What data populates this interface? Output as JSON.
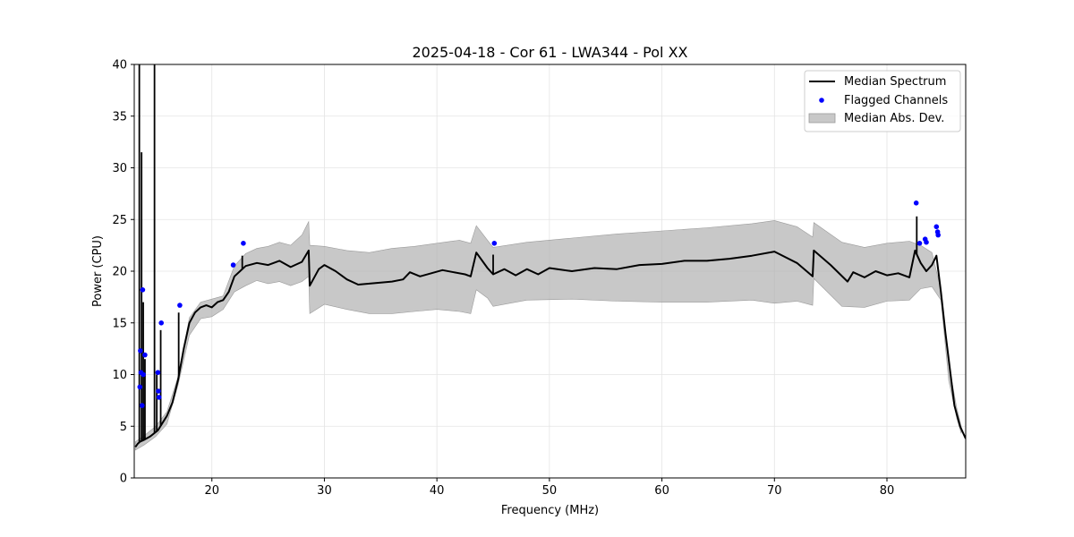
{
  "chart_data": {
    "type": "line",
    "title": "2025-04-18 - Cor 61 - LWA344 - Pol XX",
    "xlabel": "Frequency (MHz)",
    "ylabel": "Power (CPU)",
    "xlim": [
      13.1,
      87.0
    ],
    "ylim": [
      0,
      40
    ],
    "xticks": [
      20,
      30,
      40,
      50,
      60,
      70,
      80
    ],
    "yticks": [
      0,
      5,
      10,
      15,
      20,
      25,
      30,
      35,
      40
    ],
    "grid": true,
    "legend": "top-right",
    "colors": {
      "median": "#000000",
      "flagged": "#0000ff",
      "mad": "#b0b0b0"
    },
    "series": [
      {
        "name": "Median Spectrum",
        "type": "line",
        "x": [
          13.2,
          13.4,
          13.6,
          14.0,
          14.5,
          15.2,
          15.6,
          16.0,
          16.5,
          17.0,
          17.5,
          18.0,
          18.5,
          19.0,
          19.5,
          20.0,
          20.5,
          21.0,
          21.5,
          22.0,
          22.5,
          23.0,
          24.0,
          25.0,
          26.0,
          27.0,
          28.0,
          28.6,
          28.7,
          29.5,
          30.0,
          31.0,
          32.0,
          33.0,
          34.0,
          35.0,
          36.0,
          37.0,
          37.6,
          38.5,
          39.5,
          40.5,
          41.5,
          42.5,
          43.0,
          43.5,
          44.5,
          45.0,
          46.0,
          47.0,
          48.0,
          49.0,
          50.0,
          52.0,
          54.0,
          56.0,
          58.0,
          60.0,
          62.0,
          64.0,
          66.0,
          68.0,
          70.0,
          72.0,
          73.4,
          73.5,
          75.0,
          76.5,
          77.0,
          78.0,
          79.0,
          80.0,
          81.0,
          82.0,
          82.5,
          83.0,
          83.5,
          84.0,
          84.4,
          84.8,
          85.2,
          85.6,
          86.0,
          86.5,
          87.0
        ],
        "y": [
          3.0,
          3.3,
          3.5,
          3.7,
          4.0,
          4.6,
          5.3,
          6.0,
          7.3,
          9.5,
          12.5,
          15.0,
          16.0,
          16.5,
          16.7,
          16.5,
          17.0,
          17.2,
          18.0,
          19.5,
          20.0,
          20.5,
          20.8,
          20.6,
          21.0,
          20.4,
          20.9,
          22.0,
          18.6,
          20.2,
          20.6,
          20.0,
          19.2,
          18.7,
          18.8,
          18.9,
          19.0,
          19.2,
          19.9,
          19.5,
          19.8,
          20.1,
          19.9,
          19.7,
          19.5,
          21.8,
          20.3,
          19.7,
          20.2,
          19.6,
          20.2,
          19.7,
          20.3,
          20.0,
          20.3,
          20.2,
          20.6,
          20.7,
          21.0,
          21.0,
          21.2,
          21.5,
          21.9,
          20.8,
          19.5,
          22.0,
          20.6,
          19.0,
          19.9,
          19.4,
          20.0,
          19.6,
          19.8,
          19.4,
          22.0,
          20.8,
          20.0,
          20.6,
          21.5,
          18.0,
          14.0,
          10.5,
          7.0,
          5.0,
          3.8
        ],
        "spikes": [
          {
            "x": 13.55,
            "y": 42.0
          },
          {
            "x": 13.75,
            "y": 31.5
          },
          {
            "x": 13.9,
            "y": 17.0
          },
          {
            "x": 14.05,
            "y": 11.5
          },
          {
            "x": 14.9,
            "y": 42.0
          },
          {
            "x": 15.1,
            "y": 10.0
          },
          {
            "x": 15.45,
            "y": 14.3
          },
          {
            "x": 17.05,
            "y": 16.0
          },
          {
            "x": 22.7,
            "y": 21.5
          },
          {
            "x": 45.0,
            "y": 21.6
          },
          {
            "x": 82.65,
            "y": 25.3
          }
        ]
      },
      {
        "name": "Flagged Channels",
        "type": "scatter",
        "x": [
          13.6,
          13.65,
          13.7,
          13.8,
          13.85,
          13.9,
          14.05,
          15.2,
          15.25,
          15.3,
          15.5,
          17.15,
          21.9,
          22.8,
          45.1,
          82.6,
          82.9,
          83.4,
          83.5,
          84.4,
          84.5,
          84.55
        ],
        "y": [
          8.8,
          12.3,
          10.2,
          7.0,
          18.2,
          10.0,
          11.9,
          10.2,
          8.4,
          7.8,
          15.0,
          16.7,
          20.6,
          22.7,
          22.7,
          26.6,
          22.7,
          23.1,
          22.8,
          24.3,
          23.8,
          23.5
        ]
      },
      {
        "name": "Median Abs. Dev.",
        "type": "band",
        "x": [
          13.2,
          14.0,
          15.0,
          16.0,
          17.0,
          18.0,
          19.0,
          20.0,
          21.0,
          22.0,
          23.0,
          24.0,
          25.0,
          26.0,
          27.0,
          28.0,
          28.6,
          28.7,
          30.0,
          32.0,
          34.0,
          36.0,
          38.0,
          40.0,
          42.0,
          43.0,
          43.5,
          44.5,
          45.0,
          48.0,
          52.0,
          56.0,
          60.0,
          64.0,
          68.0,
          70.0,
          72.0,
          73.4,
          73.5,
          76.0,
          78.0,
          80.0,
          82.0,
          83.0,
          84.0,
          84.8,
          85.5,
          86.2,
          86.6
        ],
        "upper": [
          3.5,
          4.1,
          5.0,
          6.4,
          9.8,
          15.5,
          17.0,
          17.3,
          17.6,
          20.5,
          21.7,
          22.2,
          22.4,
          22.8,
          22.5,
          23.5,
          24.8,
          22.5,
          22.4,
          22.0,
          21.8,
          22.2,
          22.4,
          22.7,
          23.0,
          22.7,
          24.4,
          23.0,
          22.3,
          22.8,
          23.2,
          23.6,
          23.9,
          24.2,
          24.6,
          24.9,
          24.3,
          23.3,
          24.7,
          22.8,
          22.3,
          22.7,
          22.9,
          22.5,
          21.8,
          18.2,
          11.0,
          6.8,
          5.0
        ],
        "lower": [
          2.7,
          3.2,
          4.0,
          5.2,
          9.0,
          13.8,
          15.4,
          15.6,
          16.3,
          18.0,
          18.6,
          19.1,
          18.8,
          19.0,
          18.6,
          19.0,
          19.5,
          15.9,
          16.8,
          16.3,
          15.9,
          15.9,
          16.1,
          16.3,
          16.1,
          15.9,
          18.2,
          17.4,
          16.6,
          17.2,
          17.3,
          17.1,
          17.0,
          17.0,
          17.2,
          16.9,
          17.1,
          16.7,
          19.3,
          16.6,
          16.5,
          17.1,
          17.2,
          18.3,
          18.5,
          17.2,
          9.4,
          5.8,
          4.3
        ]
      }
    ]
  }
}
